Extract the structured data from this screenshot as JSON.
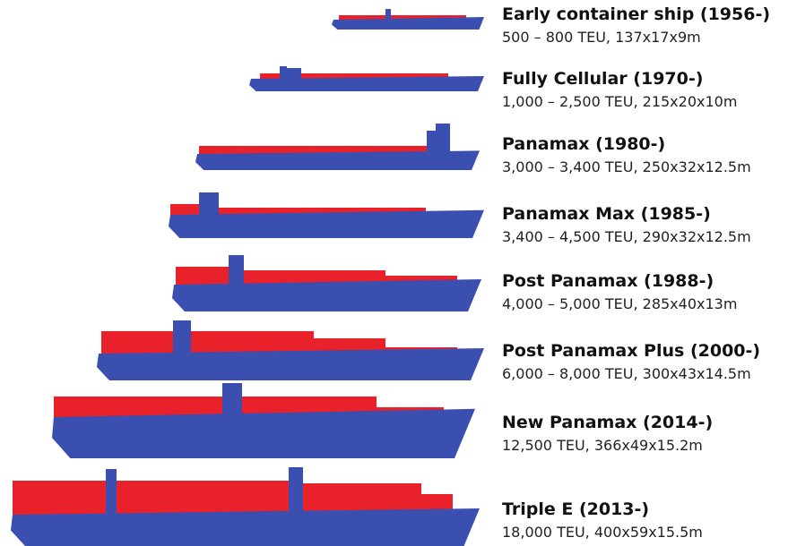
{
  "ships": [
    {
      "name": "Early container ship (1956-)",
      "spec": "500 – 800 TEU, 137x17x9m"
    },
    {
      "name": "Fully Cellular (1970-)",
      "spec": "1,000 – 2,500 TEU, 215x20x10m"
    },
    {
      "name": "Panamax (1980-)",
      "spec": "3,000 – 3,400 TEU, 250x32x12.5m"
    },
    {
      "name": "Panamax Max (1985-)",
      "spec": "3,400 – 4,500 TEU, 290x32x12.5m"
    },
    {
      "name": "Post Panamax (1988-)",
      "spec": "4,000 – 5,000 TEU, 285x40x13m"
    },
    {
      "name": "Post Panamax Plus (2000-)",
      "spec": "6,000 – 8,000 TEU, 300x43x14.5m"
    },
    {
      "name": "New Panamax (2014-)",
      "spec": "12,500 TEU, 366x49x15.2m"
    },
    {
      "name": "Triple E (2013-)",
      "spec": "18,000 TEU, 400x59x15.5m"
    }
  ]
}
